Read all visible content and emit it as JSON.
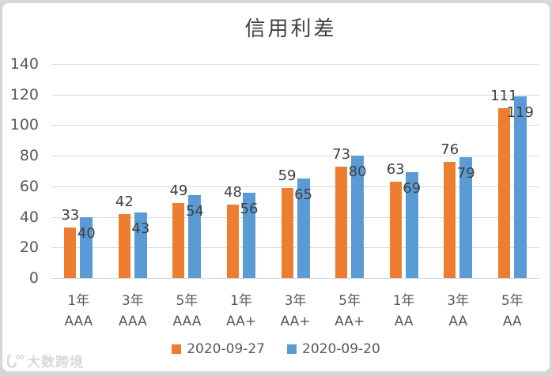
{
  "chart_data": {
    "type": "bar",
    "title": "信用利差",
    "categories": [
      [
        "1年",
        "AAA"
      ],
      [
        "3年",
        "AAA"
      ],
      [
        "5年",
        "AAA"
      ],
      [
        "1年",
        "AA+"
      ],
      [
        "3年",
        "AA+"
      ],
      [
        "5年",
        "AA+"
      ],
      [
        "1年",
        "AA"
      ],
      [
        "3年",
        "AA"
      ],
      [
        "5年",
        "AA"
      ]
    ],
    "series": [
      {
        "name": "2020-09-27",
        "color": "#ED7D31",
        "values": [
          33,
          42,
          49,
          48,
          59,
          73,
          63,
          76,
          111
        ]
      },
      {
        "name": "2020-09-20",
        "color": "#5B9BD5",
        "values": [
          40,
          43,
          54,
          56,
          65,
          80,
          69,
          79,
          119
        ]
      }
    ],
    "ylim": [
      0,
      140
    ],
    "yticks": [
      0,
      20,
      40,
      60,
      80,
      100,
      120,
      140
    ],
    "grid": "horizontal",
    "legend_position": "bottom",
    "gridline_color": "#D9D9D9",
    "axis_text_color": "#595959",
    "label_text_color": "#404040"
  },
  "watermark": {
    "text": "大数跨境"
  }
}
